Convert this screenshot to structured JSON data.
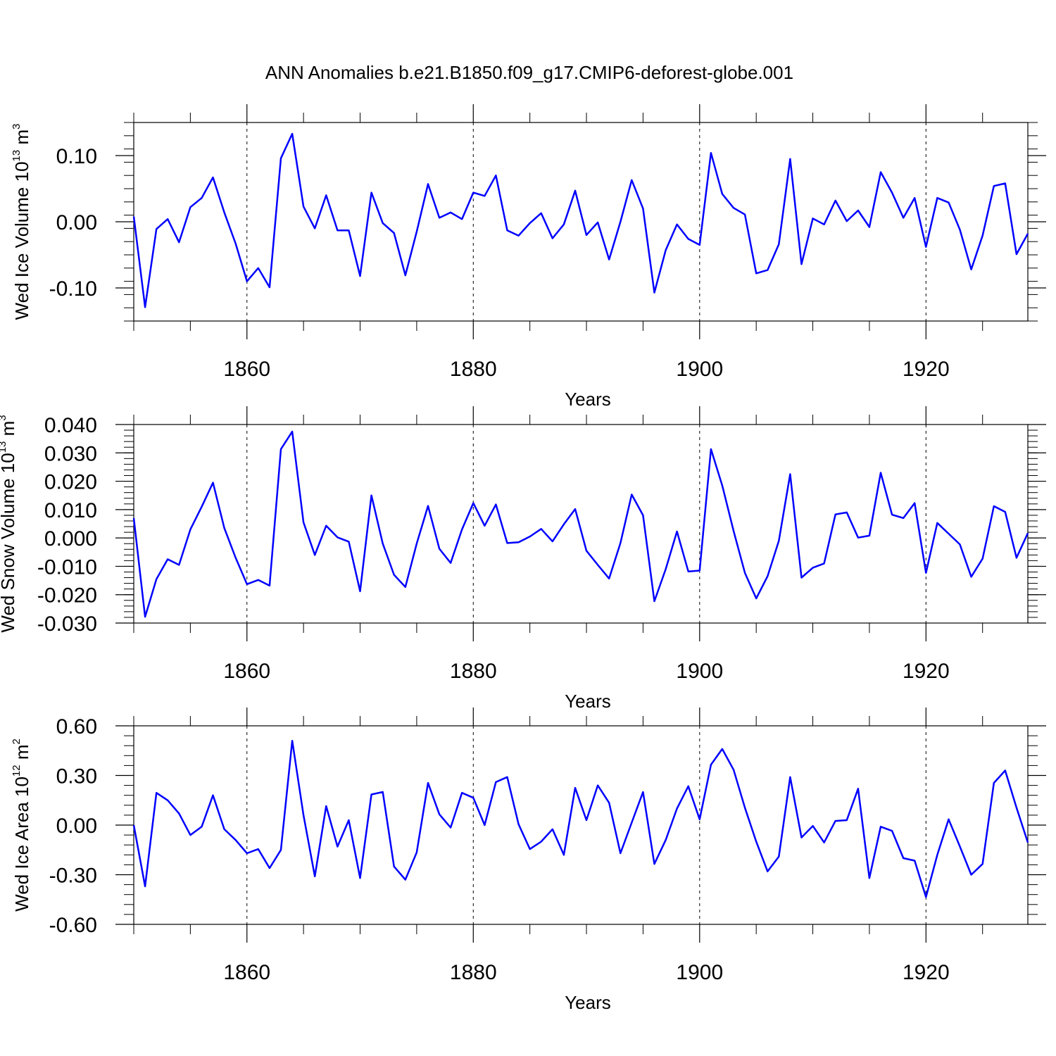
{
  "title": "ANN Anomalies b.e21.B1850.f09_g17.CMIP6-deforest-globe.001",
  "colors": {
    "series": "#0000ff",
    "axes": "#000000"
  },
  "chart_data": [
    {
      "type": "line",
      "ylabel": "Wed Ice Volume 10",
      "ylabel_sup1": "13",
      "ylabel_unit": " m",
      "ylabel_sup2": "3",
      "xlabel": "Years",
      "xlim": [
        1850,
        1929
      ],
      "ylim": [
        -0.15,
        0.15
      ],
      "xticks": [
        1860,
        1880,
        1900,
        1920
      ],
      "xtick_labels": [
        "1860",
        "1880",
        "1900",
        "1920"
      ],
      "yticks": [
        -0.1,
        0.0,
        0.1
      ],
      "ytick_labels": [
        "-0.10",
        "0.00",
        "0.10"
      ],
      "yminor_step": 0.02,
      "grid": "vertical dashed at major x ticks",
      "x": [
        1850,
        1851,
        1852,
        1853,
        1854,
        1855,
        1856,
        1857,
        1858,
        1859,
        1860,
        1861,
        1862,
        1863,
        1864,
        1865,
        1866,
        1867,
        1868,
        1869,
        1870,
        1871,
        1872,
        1873,
        1874,
        1875,
        1876,
        1877,
        1878,
        1879,
        1880,
        1881,
        1882,
        1883,
        1884,
        1885,
        1886,
        1887,
        1888,
        1889,
        1890,
        1891,
        1892,
        1893,
        1894,
        1895,
        1896,
        1897,
        1898,
        1899,
        1900,
        1901,
        1902,
        1903,
        1904,
        1905,
        1906,
        1907,
        1908,
        1909,
        1910,
        1911,
        1912,
        1913,
        1914,
        1915,
        1916,
        1917,
        1918,
        1919,
        1920,
        1921,
        1922,
        1923,
        1924,
        1925,
        1926,
        1927,
        1928,
        1929
      ],
      "values": [
        0.008,
        -0.129,
        -0.011,
        0.004,
        -0.031,
        0.022,
        0.036,
        0.067,
        0.014,
        -0.033,
        -0.09,
        -0.07,
        -0.099,
        0.096,
        0.133,
        0.023,
        -0.01,
        0.04,
        -0.013,
        -0.013,
        -0.082,
        0.044,
        -0.002,
        -0.017,
        -0.081,
        -0.015,
        0.057,
        0.006,
        0.014,
        0.004,
        0.044,
        0.039,
        0.07,
        -0.013,
        -0.021,
        -0.002,
        0.013,
        -0.025,
        -0.004,
        0.047,
        -0.02,
        -0.001,
        -0.057,
        0.0,
        0.063,
        0.02,
        -0.107,
        -0.043,
        -0.004,
        -0.026,
        -0.035,
        0.104,
        0.042,
        0.021,
        0.011,
        -0.078,
        -0.073,
        -0.034,
        0.095,
        -0.064,
        0.005,
        -0.004,
        0.032,
        0.001,
        0.017,
        -0.008,
        0.075,
        0.044,
        0.006,
        0.036,
        -0.038,
        0.036,
        0.029,
        -0.012,
        -0.072,
        -0.021,
        0.054,
        0.058,
        -0.049,
        -0.018
      ]
    },
    {
      "type": "line",
      "ylabel": "Wed Snow Volume 10",
      "ylabel_sup1": "13",
      "ylabel_unit": " m",
      "ylabel_sup2": "3",
      "xlabel": "Years",
      "xlim": [
        1850,
        1929
      ],
      "ylim": [
        -0.03,
        0.04
      ],
      "xticks": [
        1860,
        1880,
        1900,
        1920
      ],
      "xtick_labels": [
        "1860",
        "1880",
        "1900",
        "1920"
      ],
      "yticks": [
        -0.03,
        -0.02,
        -0.01,
        0.0,
        0.01,
        0.02,
        0.03,
        0.04
      ],
      "ytick_labels": [
        "-0.030",
        "-0.020",
        "-0.010",
        "0.000",
        "0.010",
        "0.020",
        "0.030",
        "0.040"
      ],
      "yminor_step": 0.002,
      "grid": "vertical dashed at major x ticks",
      "x": [
        1850,
        1851,
        1852,
        1853,
        1854,
        1855,
        1856,
        1857,
        1858,
        1859,
        1860,
        1861,
        1862,
        1863,
        1864,
        1865,
        1866,
        1867,
        1868,
        1869,
        1870,
        1871,
        1872,
        1873,
        1874,
        1875,
        1876,
        1877,
        1878,
        1879,
        1880,
        1881,
        1882,
        1883,
        1884,
        1885,
        1886,
        1887,
        1888,
        1889,
        1890,
        1891,
        1892,
        1893,
        1894,
        1895,
        1896,
        1897,
        1898,
        1899,
        1900,
        1901,
        1902,
        1903,
        1904,
        1905,
        1906,
        1907,
        1908,
        1909,
        1910,
        1911,
        1912,
        1913,
        1914,
        1915,
        1916,
        1917,
        1918,
        1919,
        1920,
        1921,
        1922,
        1923,
        1924,
        1925,
        1926,
        1927,
        1928,
        1929
      ],
      "values": [
        0.007,
        -0.0278,
        -0.0145,
        -0.0075,
        -0.0095,
        0.003,
        0.011,
        0.0195,
        0.0035,
        -0.007,
        -0.0163,
        -0.0148,
        -0.0168,
        0.0313,
        0.0375,
        0.0055,
        -0.006,
        0.0043,
        0.0002,
        -0.0013,
        -0.0188,
        0.015,
        -0.002,
        -0.013,
        -0.0173,
        -0.002,
        0.0113,
        -0.0038,
        -0.0088,
        0.003,
        0.0123,
        0.0043,
        0.0118,
        -0.0018,
        -0.0015,
        0.0005,
        0.0032,
        -0.0012,
        0.0048,
        0.0102,
        -0.0045,
        -0.0095,
        -0.0143,
        -0.0018,
        0.0153,
        0.008,
        -0.0223,
        -0.011,
        0.0023,
        -0.0118,
        -0.0115,
        0.0313,
        0.0185,
        0.0025,
        -0.0123,
        -0.0213,
        -0.0135,
        -0.001,
        0.0225,
        -0.014,
        -0.0105,
        -0.009,
        0.0083,
        0.009,
        0.0001,
        0.0008,
        0.023,
        0.0082,
        0.007,
        0.0123,
        -0.0123,
        0.0053,
        0.0015,
        -0.0023,
        -0.0137,
        -0.0073,
        0.0112,
        0.0092,
        -0.007,
        0.0017
      ]
    },
    {
      "type": "line",
      "ylabel": "Wed Ice Area 10",
      "ylabel_sup1": "12",
      "ylabel_unit": " m",
      "ylabel_sup2": "2",
      "xlabel": "Years",
      "xlim": [
        1850,
        1929
      ],
      "ylim": [
        -0.6,
        0.6
      ],
      "xticks": [
        1860,
        1880,
        1900,
        1920
      ],
      "xtick_labels": [
        "1860",
        "1880",
        "1900",
        "1920"
      ],
      "yticks": [
        -0.6,
        -0.3,
        0.0,
        0.3,
        0.6
      ],
      "ytick_labels": [
        "-0.60",
        "-0.30",
        "0.00",
        "0.30",
        "0.60"
      ],
      "yminor_step": 0.06,
      "grid": "vertical dashed at major x ticks",
      "x": [
        1850,
        1851,
        1852,
        1853,
        1854,
        1855,
        1856,
        1857,
        1858,
        1859,
        1860,
        1861,
        1862,
        1863,
        1864,
        1865,
        1866,
        1867,
        1868,
        1869,
        1870,
        1871,
        1872,
        1873,
        1874,
        1875,
        1876,
        1877,
        1878,
        1879,
        1880,
        1881,
        1882,
        1883,
        1884,
        1885,
        1886,
        1887,
        1888,
        1889,
        1890,
        1891,
        1892,
        1893,
        1894,
        1895,
        1896,
        1897,
        1898,
        1899,
        1900,
        1901,
        1902,
        1903,
        1904,
        1905,
        1906,
        1907,
        1908,
        1909,
        1910,
        1911,
        1912,
        1913,
        1914,
        1915,
        1916,
        1917,
        1918,
        1919,
        1920,
        1921,
        1922,
        1923,
        1924,
        1925,
        1926,
        1927,
        1928,
        1929
      ],
      "values": [
        0.0,
        -0.37,
        0.195,
        0.15,
        0.07,
        -0.06,
        -0.01,
        0.18,
        -0.025,
        -0.09,
        -0.17,
        -0.145,
        -0.26,
        -0.15,
        0.51,
        0.06,
        -0.31,
        0.115,
        -0.13,
        0.03,
        -0.32,
        0.185,
        0.2,
        -0.25,
        -0.33,
        -0.165,
        0.255,
        0.065,
        -0.015,
        0.195,
        0.165,
        0.0,
        0.26,
        0.29,
        0.005,
        -0.145,
        -0.1,
        -0.025,
        -0.18,
        0.225,
        0.03,
        0.24,
        0.135,
        -0.17,
        0.015,
        0.2,
        -0.235,
        -0.09,
        0.1,
        0.235,
        0.035,
        0.365,
        0.46,
        0.335,
        0.105,
        -0.1,
        -0.28,
        -0.19,
        0.29,
        -0.075,
        -0.005,
        -0.105,
        0.025,
        0.03,
        0.22,
        -0.32,
        -0.01,
        -0.035,
        -0.2,
        -0.215,
        -0.435,
        -0.18,
        0.035,
        -0.13,
        -0.3,
        -0.235,
        0.255,
        0.33,
        0.105,
        -0.105
      ]
    }
  ]
}
